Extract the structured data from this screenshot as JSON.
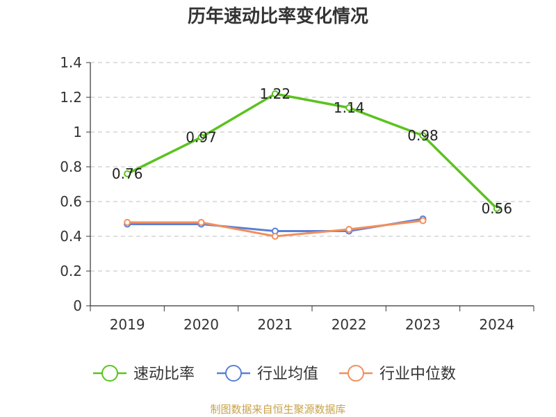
{
  "chart_data": {
    "type": "line",
    "title": "历年速动比率变化情况",
    "categories": [
      "2019",
      "2020",
      "2021",
      "2022",
      "2023",
      "2024"
    ],
    "ylim": [
      0,
      1.4
    ],
    "yticks": [
      "0",
      "0.2",
      "0.4",
      "0.6",
      "0.8",
      "1",
      "1.2",
      "1.4"
    ],
    "grid": true,
    "legend_position": "bottom",
    "series": [
      {
        "name": "速动比率",
        "color": "#5bc21e",
        "values": [
          0.76,
          0.97,
          1.22,
          1.14,
          0.98,
          0.56
        ],
        "labels": [
          "0.76",
          "0.97",
          "1.22",
          "1.14",
          "0.98",
          "0.56"
        ]
      },
      {
        "name": "行业均值",
        "color": "#5b7fd6",
        "values": [
          0.47,
          0.47,
          0.43,
          0.43,
          0.5,
          null
        ]
      },
      {
        "name": "行业中位数",
        "color": "#f28e5c",
        "values": [
          0.48,
          0.48,
          0.4,
          0.44,
          0.49,
          null
        ]
      }
    ],
    "source": "制图数据来自恒生聚源数据库"
  }
}
